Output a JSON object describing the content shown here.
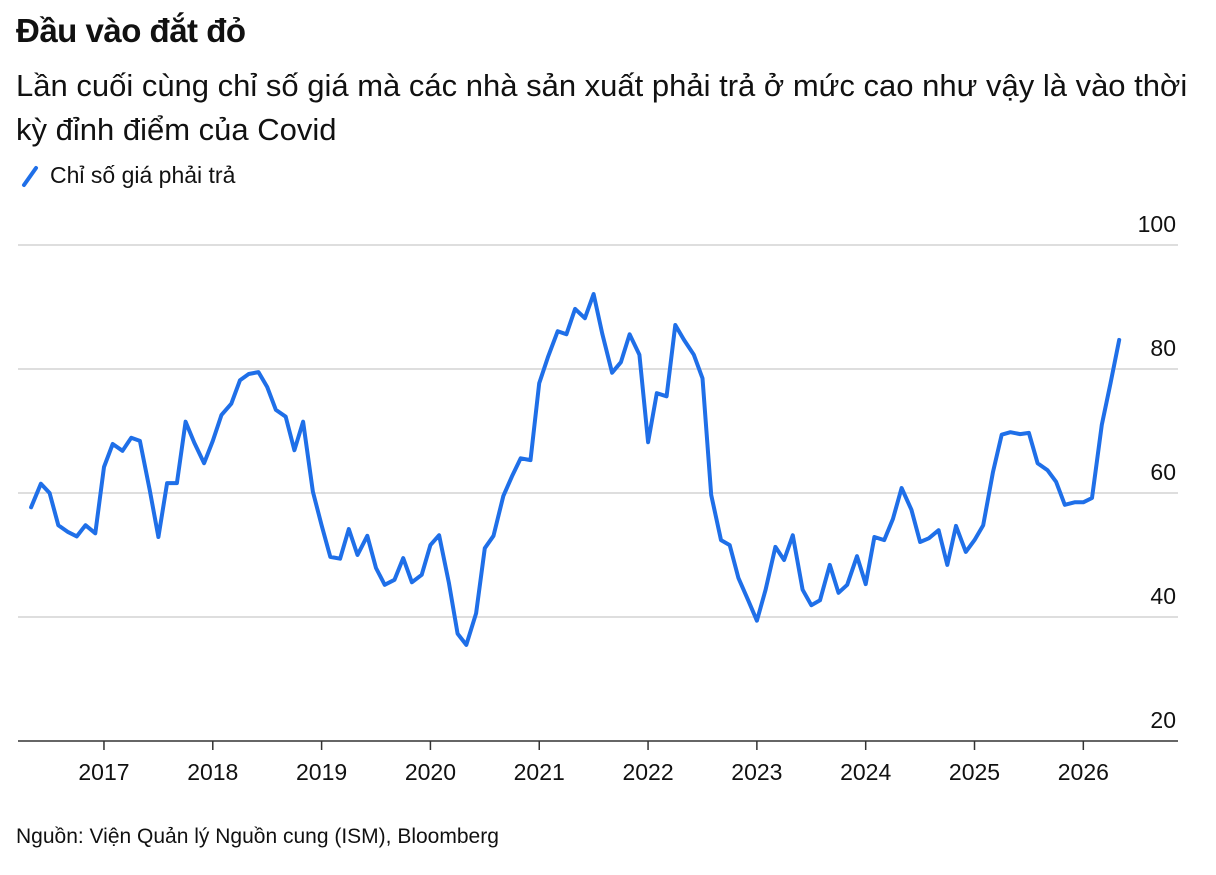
{
  "chart_data": {
    "type": "line",
    "title": "Đầu vào đắt đỏ",
    "subtitle": "Lần cuối cùng chỉ số giá mà các nhà sản xuất phải trả ở mức cao như vậy là vào thời kỳ đỉnh điểm của Covid",
    "source": "Nguồn: Viện Quản lý Nguồn cung (ISM), Bloomberg",
    "x": [
      2016.33,
      2016.42,
      2016.5,
      2016.58,
      2016.67,
      2016.75,
      2016.83,
      2016.92,
      2017,
      2017.08,
      2017.17,
      2017.25,
      2017.33,
      2017.42,
      2017.5,
      2017.58,
      2017.67,
      2017.75,
      2017.83,
      2017.92,
      2018,
      2018.08,
      2018.17,
      2018.25,
      2018.33,
      2018.42,
      2018.5,
      2018.58,
      2018.67,
      2018.75,
      2018.83,
      2018.92,
      2019,
      2019.08,
      2019.17,
      2019.25,
      2019.33,
      2019.42,
      2019.5,
      2019.58,
      2019.67,
      2019.75,
      2019.83,
      2019.92,
      2020,
      2020.08,
      2020.17,
      2020.25,
      2020.33,
      2020.42,
      2020.5,
      2020.58,
      2020.67,
      2020.75,
      2020.83,
      2020.92,
      2021,
      2021.08,
      2021.17,
      2021.25,
      2021.33,
      2021.42,
      2021.5,
      2021.58,
      2021.67,
      2021.75,
      2021.83,
      2021.92,
      2022,
      2022.08,
      2022.17,
      2022.25,
      2022.33,
      2022.42,
      2022.5,
      2022.58,
      2022.67,
      2022.75,
      2022.83,
      2022.92,
      2023,
      2023.08,
      2023.17,
      2023.25,
      2023.33,
      2023.42,
      2023.5,
      2023.58,
      2023.67,
      2023.75,
      2023.83,
      2023.92,
      2024,
      2024.08,
      2024.17,
      2024.25,
      2024.33,
      2024.42,
      2024.5,
      2024.58,
      2024.67,
      2024.75,
      2024.83,
      2024.92,
      2025,
      2025.08,
      2025.17,
      2025.25,
      2025.33,
      2025.42,
      2025.5,
      2025.58,
      2025.67,
      2025.75,
      2025.83,
      2025.92,
      2026,
      2026.08,
      2026.17,
      2026.25,
      2026.33
    ],
    "series": [
      {
        "name": "Chỉ số giá phải trả",
        "color": "#1f6fe8",
        "values": [
          57.7,
          61.5,
          60,
          54.8,
          53.7,
          53,
          54.8,
          53.5,
          64.2,
          67.9,
          66.8,
          68.9,
          68.4,
          60.5,
          52.9,
          61.6,
          61.6,
          71.5,
          68.1,
          64.8,
          68.4,
          72.6,
          74.4,
          78.2,
          79.2,
          79.5,
          77.1,
          73.4,
          72.3,
          66.9,
          71.5,
          60.2,
          54.8,
          49.7,
          49.4,
          54.2,
          50,
          53.1,
          47.9,
          45.2,
          46,
          49.5,
          45.6,
          46.8,
          51.6,
          53.2,
          45.5,
          37.3,
          35.5,
          40.6,
          51.1,
          53.1,
          59.5,
          62.7,
          65.6,
          65.3,
          77.7,
          81.9,
          86.1,
          85.6,
          89.7,
          88.2,
          92.1,
          85.6,
          79.4,
          81.1,
          85.6,
          82.3,
          68.2,
          76.1,
          75.6,
          87.1,
          84.7,
          82.3,
          78.5,
          59.7,
          52.4,
          51.6,
          46.3,
          42.7,
          39.4,
          44.4,
          51.3,
          49.2,
          53.2,
          44.4,
          41.9,
          42.7,
          48.4,
          43.9,
          45.2,
          49.8,
          45.3,
          52.9,
          52.4,
          55.8,
          60.8,
          57.3,
          52.1,
          52.7,
          54,
          48.4,
          54.7,
          50.5,
          52.4,
          54.8,
          63.4,
          69.4,
          69.8,
          69.5,
          69.7,
          64.8,
          63.7,
          61.8,
          58.1,
          58.5,
          58.5,
          59.2,
          71,
          77.7,
          84.7
        ]
      }
    ],
    "xlim": [
      2016.21,
      2026.87
    ],
    "xticks": [
      2017,
      2018,
      2019,
      2020,
      2021,
      2022,
      2023,
      2024,
      2025,
      2026
    ],
    "ylim": [
      20,
      100
    ],
    "yticks": [
      20,
      40,
      60,
      80,
      100
    ],
    "grid": true
  }
}
